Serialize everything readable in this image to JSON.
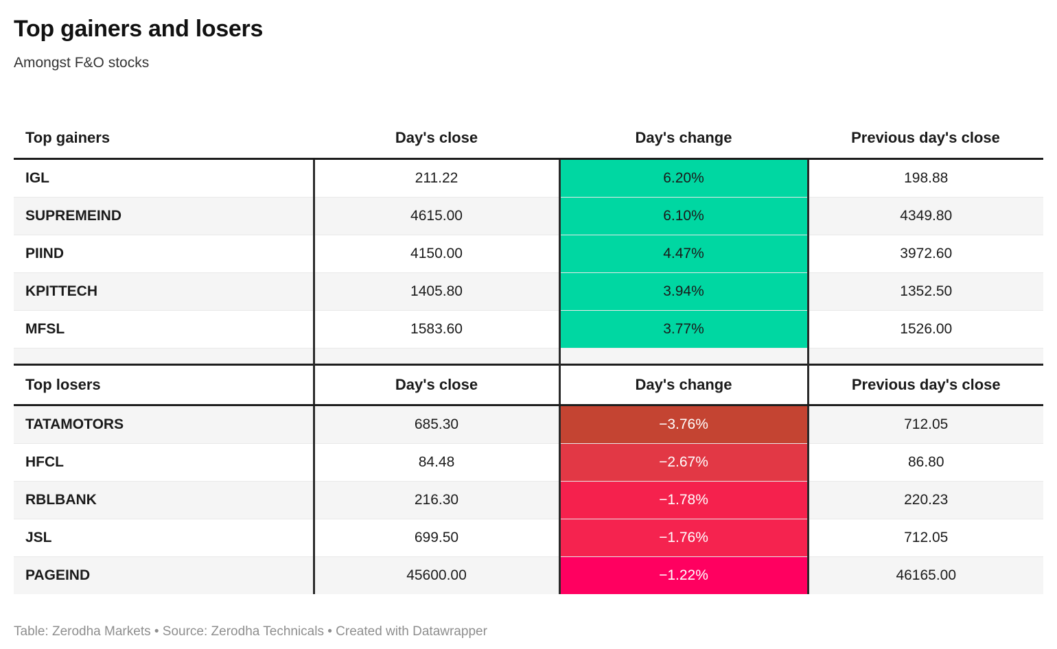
{
  "header": {
    "title": "Top gainers and losers",
    "subtitle": "Amongst F&O stocks"
  },
  "footer": {
    "text": "Table: Zerodha Markets • Source: Zerodha Technicals • Created with Datawrapper"
  },
  "chart_data": [
    {
      "type": "table",
      "title": "Top gainers",
      "columns": [
        "Top gainers",
        "Day's close",
        "Day's change",
        "Previous day's close"
      ],
      "rows": [
        [
          "IGL",
          "211.22",
          "6.20%",
          "198.88"
        ],
        [
          "SUPREMEIND",
          "4615.00",
          "6.10%",
          "4349.80"
        ],
        [
          "PIIND",
          "4150.00",
          "4.47%",
          "3972.60"
        ],
        [
          "KPITTECH",
          "1405.80",
          "3.94%",
          "1352.50"
        ],
        [
          "MFSL",
          "1583.60",
          "3.77%",
          "1526.00"
        ]
      ],
      "change_values_pct": [
        6.2,
        6.1,
        4.47,
        3.94,
        3.77
      ]
    },
    {
      "type": "table",
      "title": "Top losers",
      "columns": [
        "Top losers",
        "Day's close",
        "Day's change",
        "Previous day's close"
      ],
      "rows": [
        [
          "TATAMOTORS",
          "685.30",
          "−3.76%",
          "712.05"
        ],
        [
          "HFCL",
          "84.48",
          "−2.67%",
          "86.80"
        ],
        [
          "RBLBANK",
          "216.30",
          "−1.78%",
          "220.23"
        ],
        [
          "JSL",
          "699.50",
          "−1.76%",
          "712.05"
        ],
        [
          "PAGEIND",
          "45600.00",
          "−1.22%",
          "46165.00"
        ]
      ],
      "change_values_pct": [
        -3.76,
        -2.67,
        -1.78,
        -1.76,
        -1.22
      ]
    }
  ],
  "colors": {
    "gainer_change_bg": [
      "#00d7a2",
      "#00d7a2",
      "#00d7a2",
      "#00d7a2",
      "#00d7a2"
    ],
    "gainer_change_text": "#1a1a1a",
    "loser_change_bg": [
      "#c44432",
      "#e23845",
      "#f5214d",
      "#f5234f",
      "#ff0060"
    ],
    "loser_change_text": "#ffffff",
    "row_stripe": "#f5f5f5",
    "thick_border": "#1d1d1d",
    "column_divider": "#2a2a2a",
    "row_separator": "#e9e9e9",
    "footer_text": "#8e8e8e"
  }
}
